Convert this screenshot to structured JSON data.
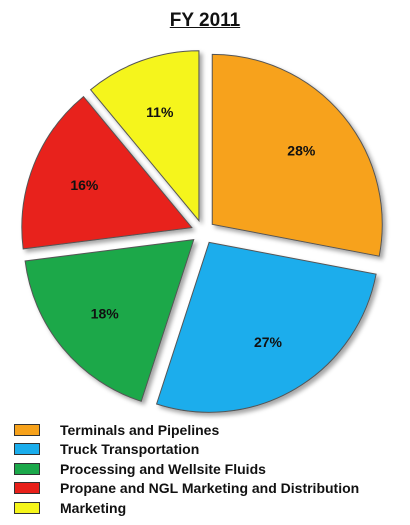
{
  "chart_data": {
    "type": "pie",
    "title": "FY 2011",
    "categories": [
      "Terminals and Pipelines",
      "Truck Transportation",
      "Processing and Wellsite Fluids",
      "Propane and NGL Marketing and Distribution",
      "Marketing"
    ],
    "values": [
      28,
      27,
      18,
      16,
      11
    ],
    "value_labels": [
      "28%",
      "27%",
      "18%",
      "16%",
      "11%"
    ],
    "colors": [
      "#F7A21B",
      "#1AADEC",
      "#1BA84A",
      "#E8201A",
      "#F5F51A"
    ],
    "exploded": true,
    "legend_position": "bottom"
  }
}
